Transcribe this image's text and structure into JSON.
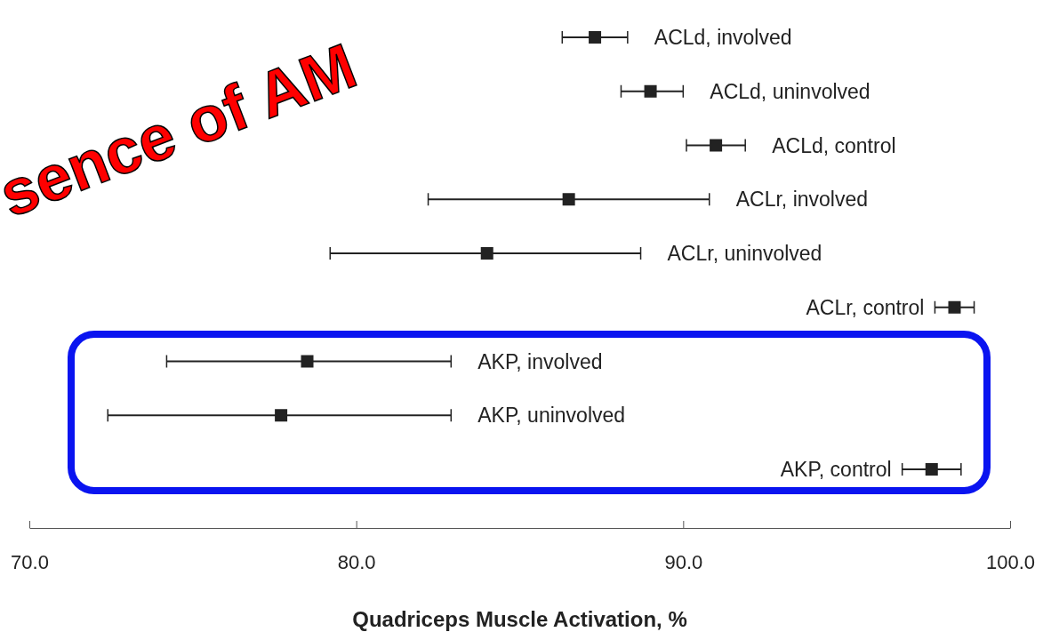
{
  "chart_data": {
    "type": "scatter",
    "orientation": "horizontal",
    "marker": "square",
    "xlabel": "Quadriceps Muscle Activation, %",
    "annotations": [
      "sence of AM"
    ],
    "categories": [
      "ACLd, involved",
      "ACLd, uninvolved",
      "ACLd, control",
      "ACLr, involved",
      "ACLr, uninvolved",
      "ACLr, control",
      "AKP, involved",
      "AKP, uninvolved",
      "AKP, control"
    ],
    "series": [
      {
        "color": "#222222",
        "values": [
          87.3,
          89.0,
          91.0,
          86.5,
          84.0,
          98.3,
          78.5,
          77.7,
          97.6
        ],
        "errors": [
          [
            86.3,
            88.3
          ],
          [
            88.1,
            90.0
          ],
          [
            90.1,
            91.9
          ],
          [
            82.2,
            90.8
          ],
          [
            79.2,
            88.7
          ],
          [
            97.7,
            98.9
          ],
          [
            74.2,
            82.9
          ],
          [
            72.4,
            82.9
          ],
          [
            96.7,
            98.5
          ]
        ]
      }
    ],
    "xlim": [
      70,
      100
    ],
    "xticks": [
      {
        "value": 70,
        "label": "70.0"
      },
      {
        "value": 80,
        "label": "80.0"
      },
      {
        "value": 90,
        "label": "90.0"
      },
      {
        "value": 100,
        "label": "100.0"
      }
    ]
  }
}
